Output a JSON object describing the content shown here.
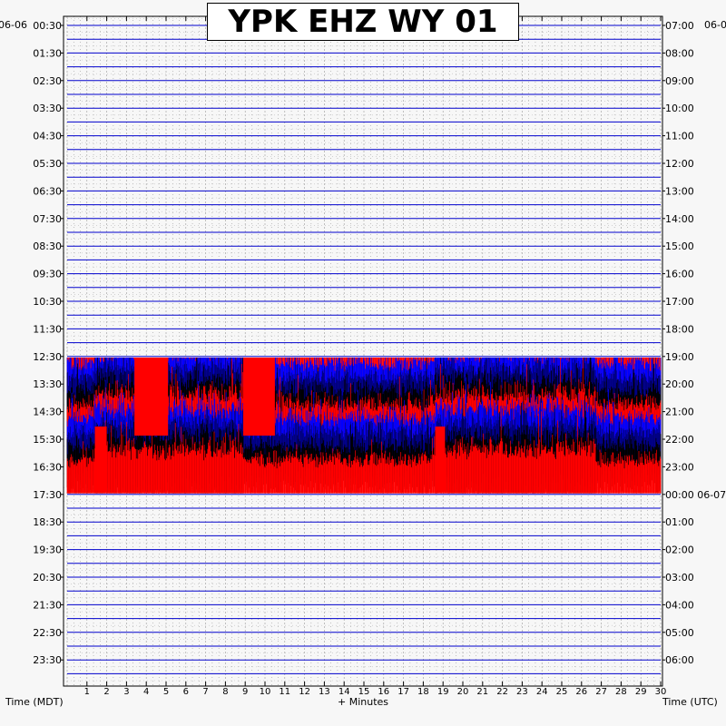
{
  "chart_data": {
    "type": "line",
    "title": "YPK EHZ WY 01",
    "date_left": "06-06",
    "date_right": "06-0",
    "xlabel": "+ Minutes",
    "xlabel_left": "Time (MDT)",
    "xlabel_right": "Time (UTC)",
    "x_range": [
      0,
      30
    ],
    "x_ticks": [
      1,
      2,
      3,
      4,
      5,
      6,
      7,
      8,
      9,
      10,
      11,
      12,
      13,
      14,
      15,
      16,
      17,
      18,
      19,
      20,
      21,
      22,
      23,
      24,
      25,
      26,
      27,
      28,
      29,
      30
    ],
    "left_time_labels": [
      "00:30",
      "01:30",
      "02:30",
      "03:30",
      "04:30",
      "05:30",
      "06:30",
      "07:30",
      "08:30",
      "09:30",
      "10:30",
      "11:30",
      "12:30",
      "13:30",
      "14:30",
      "15:30",
      "16:30",
      "17:30",
      "18:30",
      "19:30",
      "20:30",
      "21:30",
      "22:30",
      "23:30"
    ],
    "right_time_labels": [
      "07:00",
      "08:00",
      "09:00",
      "10:00",
      "11:00",
      "12:00",
      "13:00",
      "14:00",
      "15:00",
      "16:00",
      "17:00",
      "18:00",
      "19:00",
      "20:00",
      "21:00",
      "22:00",
      "23:00",
      "00:00 06-07",
      "01:00",
      "02:00",
      "03:00",
      "04:00",
      "05:00",
      "06:00"
    ],
    "trace_colors": [
      "#000000",
      "#ff0000",
      "#0000ff",
      "#000080"
    ],
    "grid": true,
    "quiet_line_color": "#0000cc",
    "activity_start_trace": 25,
    "activity_end_trace": 33,
    "red_saturated_blocks": [
      {
        "start_trace": 25,
        "x_from": 3.4,
        "x_to": 5.1
      },
      {
        "start_trace": 25,
        "x_from": 8.9,
        "x_to": 10.5
      },
      {
        "start_trace": 30,
        "x_from": 1.4,
        "x_to": 2.0
      },
      {
        "start_trace": 30,
        "x_from": 18.6,
        "x_to": 19.1
      }
    ],
    "dark_dense_segments": [
      {
        "x_from": 1.4,
        "x_to": 8.9
      },
      {
        "x_from": 18.6,
        "x_to": 26.7
      }
    ]
  }
}
